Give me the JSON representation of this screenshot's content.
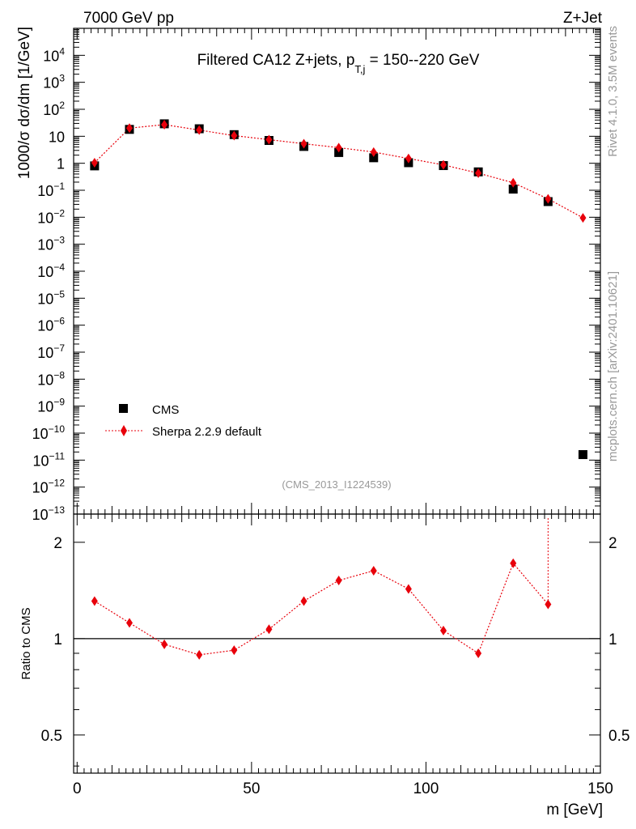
{
  "header": {
    "energy": "7000 GeV pp",
    "process": "Z+Jet"
  },
  "side_text": {
    "rivet": "Rivet 4.1.0,  3.5M events",
    "source": "mcplots.cern.ch [arXiv:2401.10621]"
  },
  "chart_data": [
    {
      "type": "scatter",
      "title": "Filtered CA12 Z+jets, p",
      "title_sub": "T,j",
      "title_tail": " = 150--220 GeV",
      "analysis_tag": "(CMS_2013_I1224539)",
      "xlabel": "m [GeV]",
      "ylabel": "1000/σ  dσ/dm [1/GeV]",
      "xlim": [
        -1,
        150
      ],
      "ylim": [
        1e-13,
        100000.0
      ],
      "yscale": "log",
      "ytick_exponents": [
        -13,
        -12,
        -11,
        -10,
        -9,
        -8,
        -7,
        -6,
        -5,
        -4,
        -3,
        -2,
        -1,
        0,
        1,
        2,
        3,
        4
      ],
      "ytick_plain": [
        "0.1",
        "1",
        "10",
        "10²"
      ],
      "legend_position": "lower-left",
      "series": [
        {
          "name": "CMS",
          "marker": "square",
          "color": "#000000",
          "x": [
            5,
            15,
            25,
            35,
            45,
            55,
            65,
            75,
            85,
            95,
            105,
            115,
            125,
            135,
            145
          ],
          "y": [
            0.8,
            18,
            29,
            19,
            11.5,
            7,
            4.2,
            2.5,
            1.6,
            1.05,
            0.82,
            0.48,
            0.11,
            0.038,
            1.6e-11
          ]
        },
        {
          "name": "Sherpa 2.2.9 default",
          "marker": "diamond",
          "line": "dotted",
          "color": "#e8000b",
          "x": [
            5,
            15,
            25,
            35,
            45,
            55,
            65,
            75,
            85,
            95,
            105,
            115,
            125,
            135,
            145
          ],
          "y": [
            1.05,
            20,
            27,
            17,
            10.6,
            7.5,
            5.3,
            3.8,
            2.6,
            1.5,
            0.87,
            0.43,
            0.19,
            0.048,
            0.0095
          ]
        }
      ]
    },
    {
      "type": "line",
      "ylabel": "Ratio to CMS",
      "xlabel": "m [GeV]",
      "xlim": [
        -1,
        150
      ],
      "ylim": [
        0.38,
        2.45
      ],
      "yscale": "log",
      "yticks": [
        0.5,
        1,
        2
      ],
      "ytick_labels": [
        "0.5",
        "1",
        "2"
      ],
      "xticks": [
        0,
        50,
        100,
        150
      ],
      "xtick_labels": [
        "0",
        "50",
        "100",
        "150"
      ],
      "reference_line": 1,
      "series": [
        {
          "name": "Sherpa 2.2.9 default / CMS",
          "color": "#e8000b",
          "x": [
            5,
            15,
            25,
            35,
            45,
            55,
            65,
            75,
            85,
            95,
            105,
            115,
            125,
            135
          ],
          "y": [
            1.31,
            1.12,
            0.96,
            0.89,
            0.92,
            1.07,
            1.31,
            1.52,
            1.63,
            1.43,
            1.06,
            0.9,
            1.72,
            1.28
          ]
        }
      ]
    }
  ]
}
